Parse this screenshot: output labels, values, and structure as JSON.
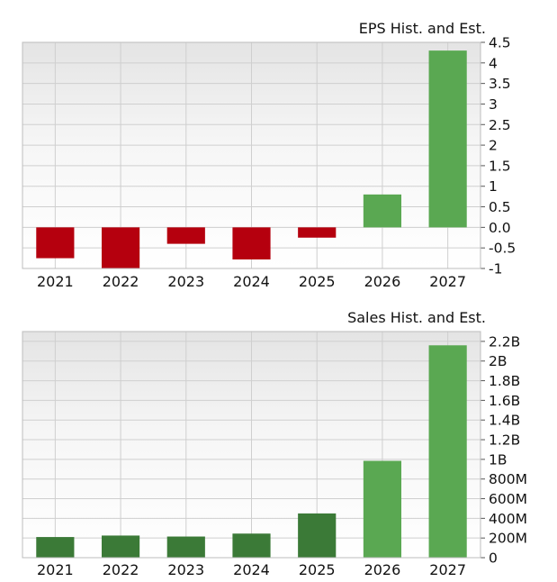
{
  "chart_data": [
    {
      "type": "bar",
      "title": "EPS Hist. and Est.",
      "xlabel": "",
      "ylabel": "",
      "categories": [
        "2021",
        "2022",
        "2023",
        "2024",
        "2025",
        "2026",
        "2027"
      ],
      "values": [
        -0.75,
        -1.0,
        -0.4,
        -0.78,
        -0.25,
        0.8,
        4.3
      ],
      "bar_status": [
        "hist",
        "hist",
        "hist",
        "hist",
        "hist",
        "est",
        "est"
      ],
      "ylim": [
        -1,
        4.5
      ],
      "y_ticks": [
        -1,
        -0.5,
        0,
        0.5,
        1,
        1.5,
        2,
        2.5,
        3,
        3.5,
        4,
        4.5
      ],
      "y_tick_labels": [
        "-1",
        "-0.5",
        "0.0",
        "0.5",
        "1",
        "1.5",
        "2",
        "2.5",
        "3",
        "3.5",
        "4",
        "4.5"
      ],
      "grid": true,
      "axis_side": "right",
      "colors": {
        "hist": "#b5000e",
        "est": "#5aa852"
      }
    },
    {
      "type": "bar",
      "title": "Sales Hist. and Est.",
      "xlabel": "",
      "ylabel": "",
      "categories": [
        "2021",
        "2022",
        "2023",
        "2024",
        "2025",
        "2026",
        "2027"
      ],
      "values": [
        210000000,
        225000000,
        215000000,
        245000000,
        450000000,
        985000000,
        2160000000
      ],
      "bar_status": [
        "hist",
        "hist",
        "hist",
        "hist",
        "hist",
        "est",
        "est"
      ],
      "ylim": [
        0,
        2300000000
      ],
      "y_ticks": [
        0,
        200000000,
        400000000,
        600000000,
        800000000,
        1000000000,
        1200000000,
        1400000000,
        1600000000,
        1800000000,
        2000000000,
        2200000000
      ],
      "y_tick_labels": [
        "0",
        "200M",
        "400M",
        "600M",
        "800M",
        "1B",
        "1.2B",
        "1.4B",
        "1.6B",
        "1.8B",
        "2B",
        "2.2B"
      ],
      "grid": true,
      "axis_side": "right",
      "colors": {
        "hist": "#3b7a37",
        "est": "#5aa852"
      }
    }
  ]
}
